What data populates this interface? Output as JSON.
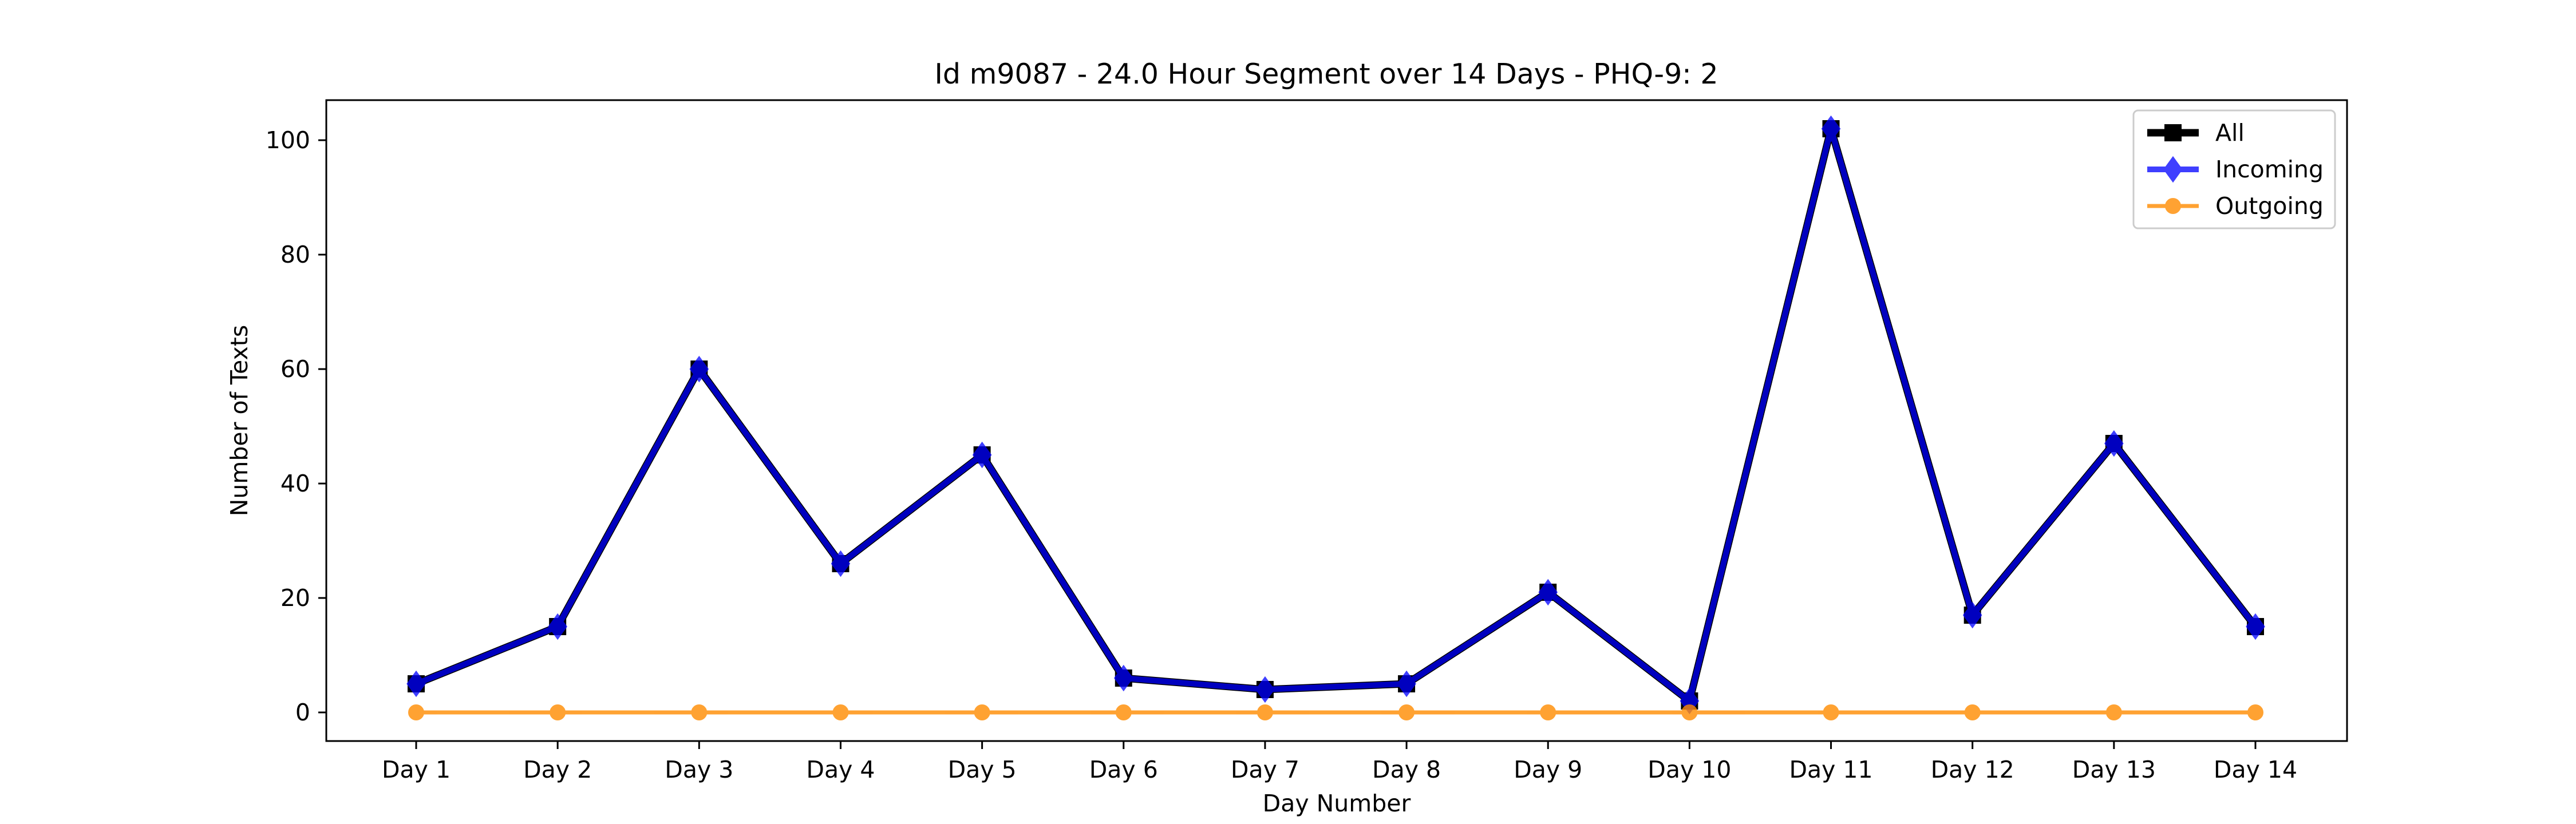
{
  "chart_data": {
    "type": "line",
    "title": "Id m9087 - 24.0 Hour Segment over 14 Days - PHQ-9: 2",
    "xlabel": "Day Number",
    "ylabel": "Number of Texts",
    "categories": [
      "Day 1",
      "Day 2",
      "Day 3",
      "Day 4",
      "Day 5",
      "Day 6",
      "Day 7",
      "Day 8",
      "Day 9",
      "Day 10",
      "Day 11",
      "Day 12",
      "Day 13",
      "Day 14"
    ],
    "ylim": [
      -5,
      107
    ],
    "yticks": [
      0,
      20,
      40,
      60,
      80,
      100
    ],
    "grid": false,
    "legend_position": "top-right",
    "series": [
      {
        "name": "All",
        "color": "#000000",
        "marker": "square",
        "values": [
          5,
          15,
          60,
          26,
          45,
          6,
          4,
          5,
          21,
          2,
          102,
          17,
          47,
          15
        ]
      },
      {
        "name": "Incoming",
        "color": "#0000ff",
        "marker": "diamond",
        "values": [
          5,
          15,
          60,
          26,
          45,
          6,
          4,
          5,
          21,
          2,
          102,
          17,
          47,
          15
        ]
      },
      {
        "name": "Outgoing",
        "color": "#ff8c00",
        "marker": "circle",
        "values": [
          0,
          0,
          0,
          0,
          0,
          0,
          0,
          0,
          0,
          0,
          0,
          0,
          0,
          0
        ]
      }
    ]
  }
}
